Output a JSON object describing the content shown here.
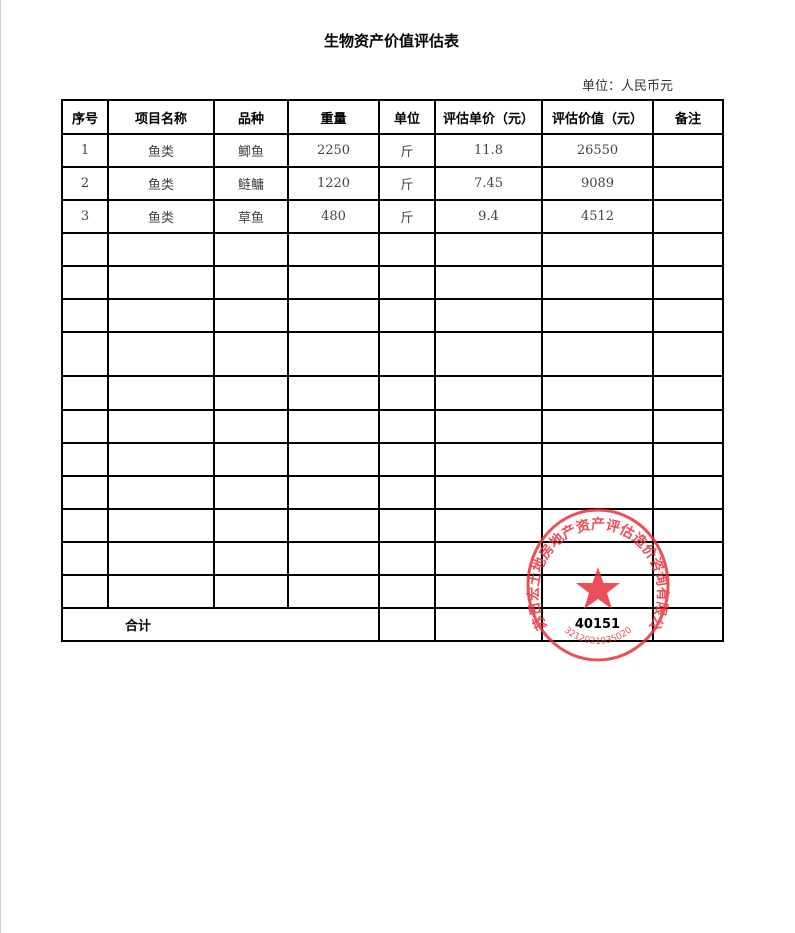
{
  "title": "生物资产价值评估表",
  "unit_label": "单位：人民币元",
  "table": {
    "headers": [
      "序号",
      "项目名称",
      "品种",
      "重量",
      "单位",
      "评估单价（元）",
      "评估价值（元）",
      "备注"
    ],
    "rows": [
      [
        "1",
        "鱼类",
        "鲫鱼",
        "2250",
        "斤",
        "11.8",
        "26550",
        ""
      ],
      [
        "2",
        "鱼类",
        "鲢鳙",
        "1220",
        "斤",
        "7.45",
        "9089",
        ""
      ],
      [
        "3",
        "鱼类",
        "草鱼",
        "480",
        "斤",
        "9.4",
        "4512",
        ""
      ]
    ],
    "total_label": "合计",
    "total_value": "40151"
  },
  "stamp": {
    "text": "江苏日宏土地房地产资产评估造价咨询有限公司",
    "number": "3212021935020",
    "color": "#e8323c"
  }
}
